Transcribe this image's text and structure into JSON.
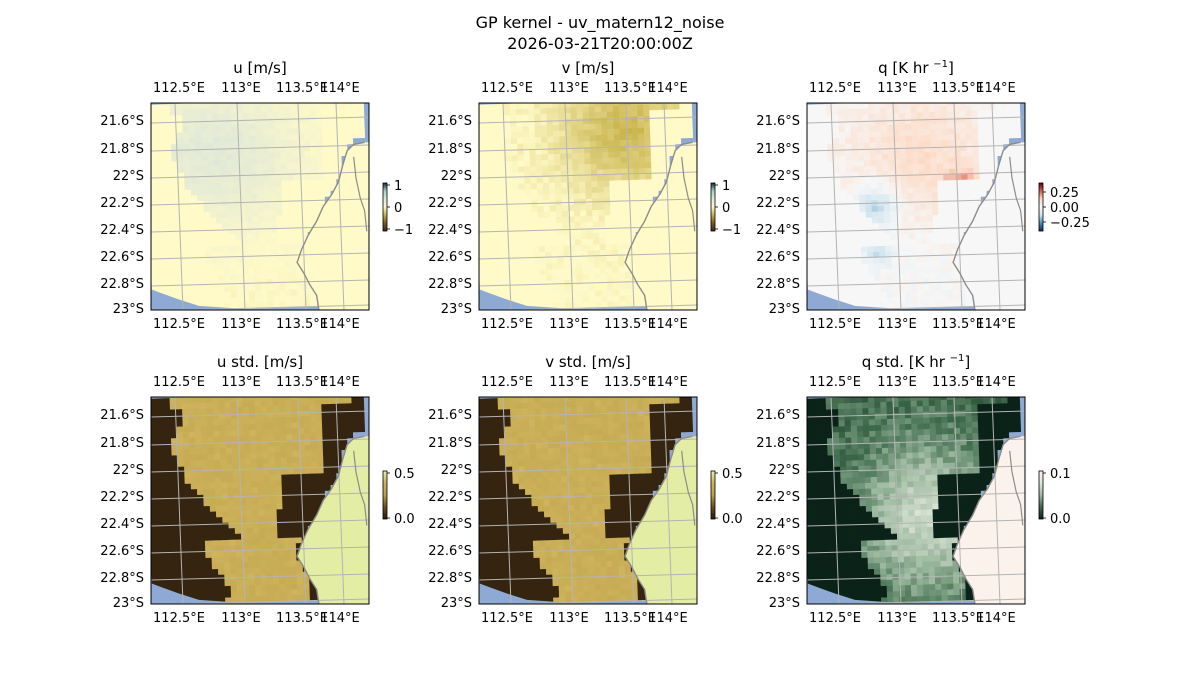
{
  "figure": {
    "title": "GP kernel - uv_matern12_noise",
    "timestamp": "2026-03-21T20:00:00Z"
  },
  "colors": {
    "ocean": "#8eaad4",
    "grid": "#b4b4b4",
    "coast": "#8c8c8c",
    "frame": "#000000"
  },
  "chart_data": [
    {
      "type": "heatmap",
      "id": "u",
      "title": "u [m/s]",
      "colormap": [
        "#3c2a18",
        "#7a5a22",
        "#c6b045",
        "#fffac8",
        "#dfe8d8",
        "#a8cfc4",
        "#0f2f3d"
      ],
      "field": "mean",
      "x_range": [
        112.35,
        114.22
      ],
      "y_range": [
        -23.02,
        -21.46
      ],
      "x_ticks": [
        "112.5°E",
        "113°E",
        "113.5°E",
        "114°E"
      ],
      "y_ticks": [
        "21.6°S",
        "21.8°S",
        "22°S",
        "22.2°S",
        "22.4°S",
        "22.6°S",
        "22.8°S",
        "23°S"
      ],
      "colorbar": {
        "ticks": [
          "1",
          "0",
          "−1"
        ],
        "range": [
          -1,
          1
        ]
      }
    },
    {
      "type": "heatmap",
      "id": "v",
      "title": "v [m/s]",
      "colormap": [
        "#3c2a18",
        "#7a5a22",
        "#c6b045",
        "#fffac8",
        "#dfe8d8",
        "#a8cfc4",
        "#0f2f3d"
      ],
      "field": "mean",
      "x_range": [
        112.35,
        114.22
      ],
      "y_range": [
        -23.02,
        -21.46
      ],
      "x_ticks": [
        "112.5°E",
        "113°E",
        "113.5°E",
        "114°E"
      ],
      "y_ticks": [
        "21.6°S",
        "21.8°S",
        "22°S",
        "22.2°S",
        "22.4°S",
        "22.6°S",
        "22.8°S",
        "23°S"
      ],
      "colorbar": {
        "ticks": [
          "1",
          "0",
          "−1"
        ],
        "range": [
          -1,
          1
        ]
      }
    },
    {
      "type": "heatmap",
      "id": "q",
      "title": "q [K hr ",
      "title_sup": "−1",
      "title_end": "]",
      "colormap": [
        "#053061",
        "#4393c3",
        "#d1e5f0",
        "#f7f7f7",
        "#fddbc7",
        "#d6604d",
        "#67001f"
      ],
      "field": "diverging",
      "x_range": [
        112.35,
        114.22
      ],
      "y_range": [
        -23.02,
        -21.46
      ],
      "x_ticks": [
        "112.5°E",
        "113°E",
        "113.5°E",
        "114°E"
      ],
      "y_ticks": [
        "21.6°S",
        "21.8°S",
        "22°S",
        "22.2°S",
        "22.4°S",
        "22.6°S",
        "22.8°S",
        "23°S"
      ],
      "colorbar": {
        "ticks": [
          "0.25",
          "0.00",
          "−0.25"
        ],
        "range": [
          -0.35,
          0.35
        ]
      }
    },
    {
      "type": "heatmap",
      "id": "u_std",
      "title": "u std. [m/s]",
      "colormap": [
        "#2b1d0e",
        "#6b4f1d",
        "#b9a24a",
        "#cdb15a",
        "#e6f2aa"
      ],
      "field": "std",
      "x_range": [
        112.35,
        114.22
      ],
      "y_range": [
        -23.02,
        -21.46
      ],
      "x_ticks": [
        "112.5°E",
        "113°E",
        "113.5°E",
        "114°E"
      ],
      "y_ticks": [
        "21.6°S",
        "21.8°S",
        "22°S",
        "22.2°S",
        "22.4°S",
        "22.6°S",
        "22.8°S",
        "23°S"
      ],
      "colorbar": {
        "ticks": [
          "0.5",
          "0.0"
        ],
        "range": [
          0,
          0.55
        ]
      }
    },
    {
      "type": "heatmap",
      "id": "v_std",
      "title": "v std. [m/s]",
      "colormap": [
        "#2b1d0e",
        "#6b4f1d",
        "#b9a24a",
        "#cdb15a",
        "#e6f2aa"
      ],
      "field": "std",
      "x_range": [
        112.35,
        114.22
      ],
      "y_range": [
        -23.02,
        -21.46
      ],
      "x_ticks": [
        "112.5°E",
        "113°E",
        "113.5°E",
        "114°E"
      ],
      "y_ticks": [
        "21.6°S",
        "21.8°S",
        "22°S",
        "22.2°S",
        "22.4°S",
        "22.6°S",
        "22.8°S",
        "23°S"
      ],
      "colorbar": {
        "ticks": [
          "0.5",
          "0.0"
        ],
        "range": [
          0,
          0.55
        ]
      }
    },
    {
      "type": "heatmap",
      "id": "q_std",
      "title": "q std. [K hr ",
      "title_sup": "−1",
      "title_end": "]",
      "colormap": [
        "#0b2218",
        "#3e6a4c",
        "#9cb99f",
        "#dfe6d9",
        "#fff3ee"
      ],
      "field": "qstd",
      "x_range": [
        112.35,
        114.22
      ],
      "y_range": [
        -23.02,
        -21.46
      ],
      "x_ticks": [
        "112.5°E",
        "113°E",
        "113.5°E",
        "114°E"
      ],
      "y_ticks": [
        "21.6°S",
        "21.8°S",
        "22°S",
        "22.2°S",
        "22.4°S",
        "22.6°S",
        "22.8°S",
        "23°S"
      ],
      "colorbar": {
        "ticks": [
          "0.1",
          "0.0"
        ],
        "range": [
          0,
          0.12
        ]
      }
    }
  ]
}
